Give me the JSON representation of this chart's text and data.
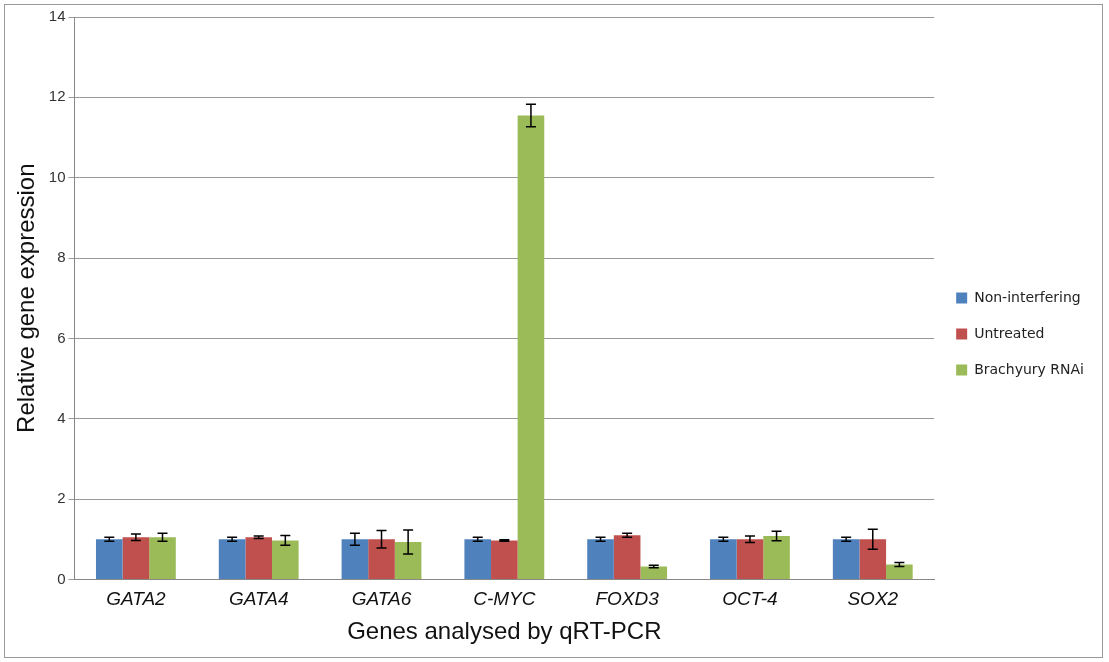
{
  "chart_data": {
    "type": "bar",
    "xlabel": "Genes analysed by qRT-PCR",
    "ylabel": "Relative gene expression",
    "categories": [
      "GATA2",
      "GATA4",
      "GATA6",
      "C-MYC",
      "FOXD3",
      "OCT-4",
      "SOX2"
    ],
    "series": [
      {
        "name": "Non-interfering",
        "color": "#4f81bd",
        "values": [
          1.0,
          1.0,
          1.0,
          1.0,
          1.0,
          1.0,
          1.0
        ],
        "errors": [
          0.05,
          0.05,
          0.15,
          0.05,
          0.05,
          0.05,
          0.05
        ]
      },
      {
        "name": "Untreated",
        "color": "#c0504d",
        "values": [
          1.05,
          1.05,
          1.0,
          0.97,
          1.1,
          1.0,
          1.0
        ],
        "errors": [
          0.08,
          0.03,
          0.22,
          0.02,
          0.05,
          0.08,
          0.25
        ]
      },
      {
        "name": "Brachyury RNAi",
        "color": "#9bbb59",
        "values": [
          1.05,
          0.97,
          0.93,
          11.55,
          0.32,
          1.08,
          0.37
        ],
        "errors": [
          0.1,
          0.12,
          0.3,
          0.28,
          0.03,
          0.12,
          0.05
        ]
      }
    ],
    "ylim": [
      0,
      14
    ],
    "yticks": [
      0,
      2,
      4,
      6,
      8,
      10,
      12,
      14
    ],
    "grid": "y",
    "legend": "right"
  }
}
